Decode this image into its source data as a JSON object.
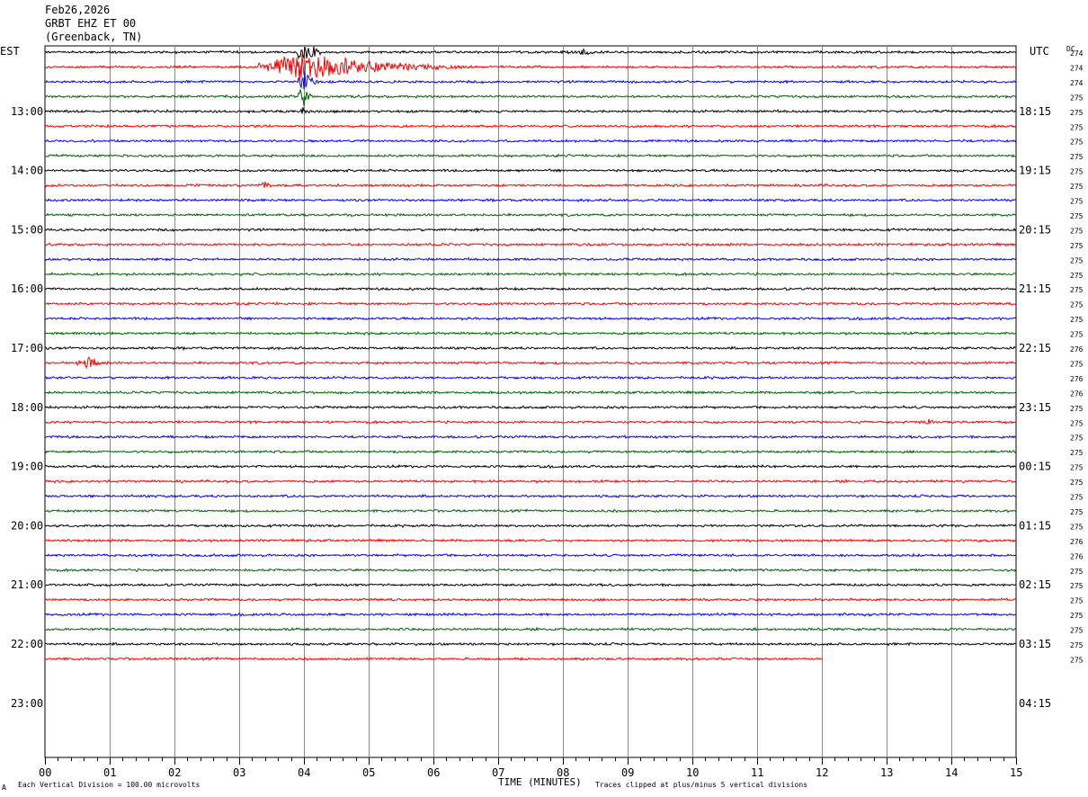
{
  "header": {
    "date": "Feb26,2026",
    "station": "GRBT EHZ ET 00",
    "location": "(Greenback, TN)"
  },
  "left_zone": "EST",
  "right_zone": "UTC",
  "dc_label": "DC",
  "footer": {
    "scale_note": "Each Vertical Division =  100.00 microvolts",
    "clip_note": "Traces clipped at plus/minus 5 vertical divisions",
    "corner_mark": "A"
  },
  "chart_data": {
    "type": "line",
    "title": "",
    "xlabel": "TIME (MINUTES)",
    "ylabel": "",
    "xlim": [
      0,
      15
    ],
    "x_ticks": [
      "00",
      "01",
      "02",
      "03",
      "04",
      "05",
      "06",
      "07",
      "08",
      "09",
      "10",
      "11",
      "12",
      "13",
      "14",
      "15"
    ],
    "grid": true,
    "trace_colors": [
      "#000000",
      "#ff0000",
      "#0000ff",
      "#006400"
    ],
    "trace_count": 42,
    "final_trace_end_minute": 12.0,
    "hour_labels_est": [
      "13:00",
      "14:00",
      "15:00",
      "16:00",
      "17:00",
      "18:00",
      "19:00",
      "20:00",
      "21:00",
      "22:00",
      "23:00"
    ],
    "hour_labels_utc": [
      "18:15",
      "19:15",
      "20:15",
      "21:15",
      "22:15",
      "23:15",
      "00:15",
      "01:15",
      "02:15",
      "03:15",
      "04:15"
    ],
    "dc_offsets": [
      274,
      274,
      274,
      275,
      275,
      275,
      275,
      275,
      275,
      275,
      275,
      275,
      275,
      275,
      275,
      275,
      275,
      275,
      275,
      275,
      276,
      275,
      276,
      276,
      275,
      275,
      275,
      275,
      275,
      275,
      275,
      275,
      275,
      276,
      276,
      275,
      275,
      275,
      275,
      275,
      275,
      275
    ],
    "events": [
      {
        "trace": 1,
        "start_minute": 3.3,
        "end_minute": 6.5,
        "peak_minute": 4.0,
        "amplitude_div": 5,
        "clipped": true
      },
      {
        "trace": 0,
        "start_minute": 3.9,
        "end_minute": 4.3,
        "amplitude_div": 5,
        "clipped": true
      },
      {
        "trace": 2,
        "start_minute": 3.9,
        "end_minute": 4.3,
        "amplitude_div": 4,
        "clipped": true
      },
      {
        "trace": 3,
        "start_minute": 3.9,
        "end_minute": 4.2,
        "amplitude_div": 4,
        "clipped": true
      },
      {
        "trace": 4,
        "start_minute": 3.95,
        "end_minute": 4.1,
        "amplitude_div": 2,
        "clipped": false
      },
      {
        "trace": 0,
        "start_minute": 8.0,
        "end_minute": 9.0,
        "amplitude_div": 1,
        "clipped": false
      },
      {
        "trace": 9,
        "start_minute": 3.3,
        "end_minute": 3.6,
        "amplitude_div": 1.5,
        "clipped": false
      },
      {
        "trace": 21,
        "start_minute": 0.5,
        "end_minute": 1.1,
        "amplitude_div": 2.2,
        "clipped": false
      },
      {
        "trace": 25,
        "start_minute": 13.5,
        "end_minute": 14.0,
        "amplitude_div": 1,
        "clipped": false
      }
    ]
  }
}
